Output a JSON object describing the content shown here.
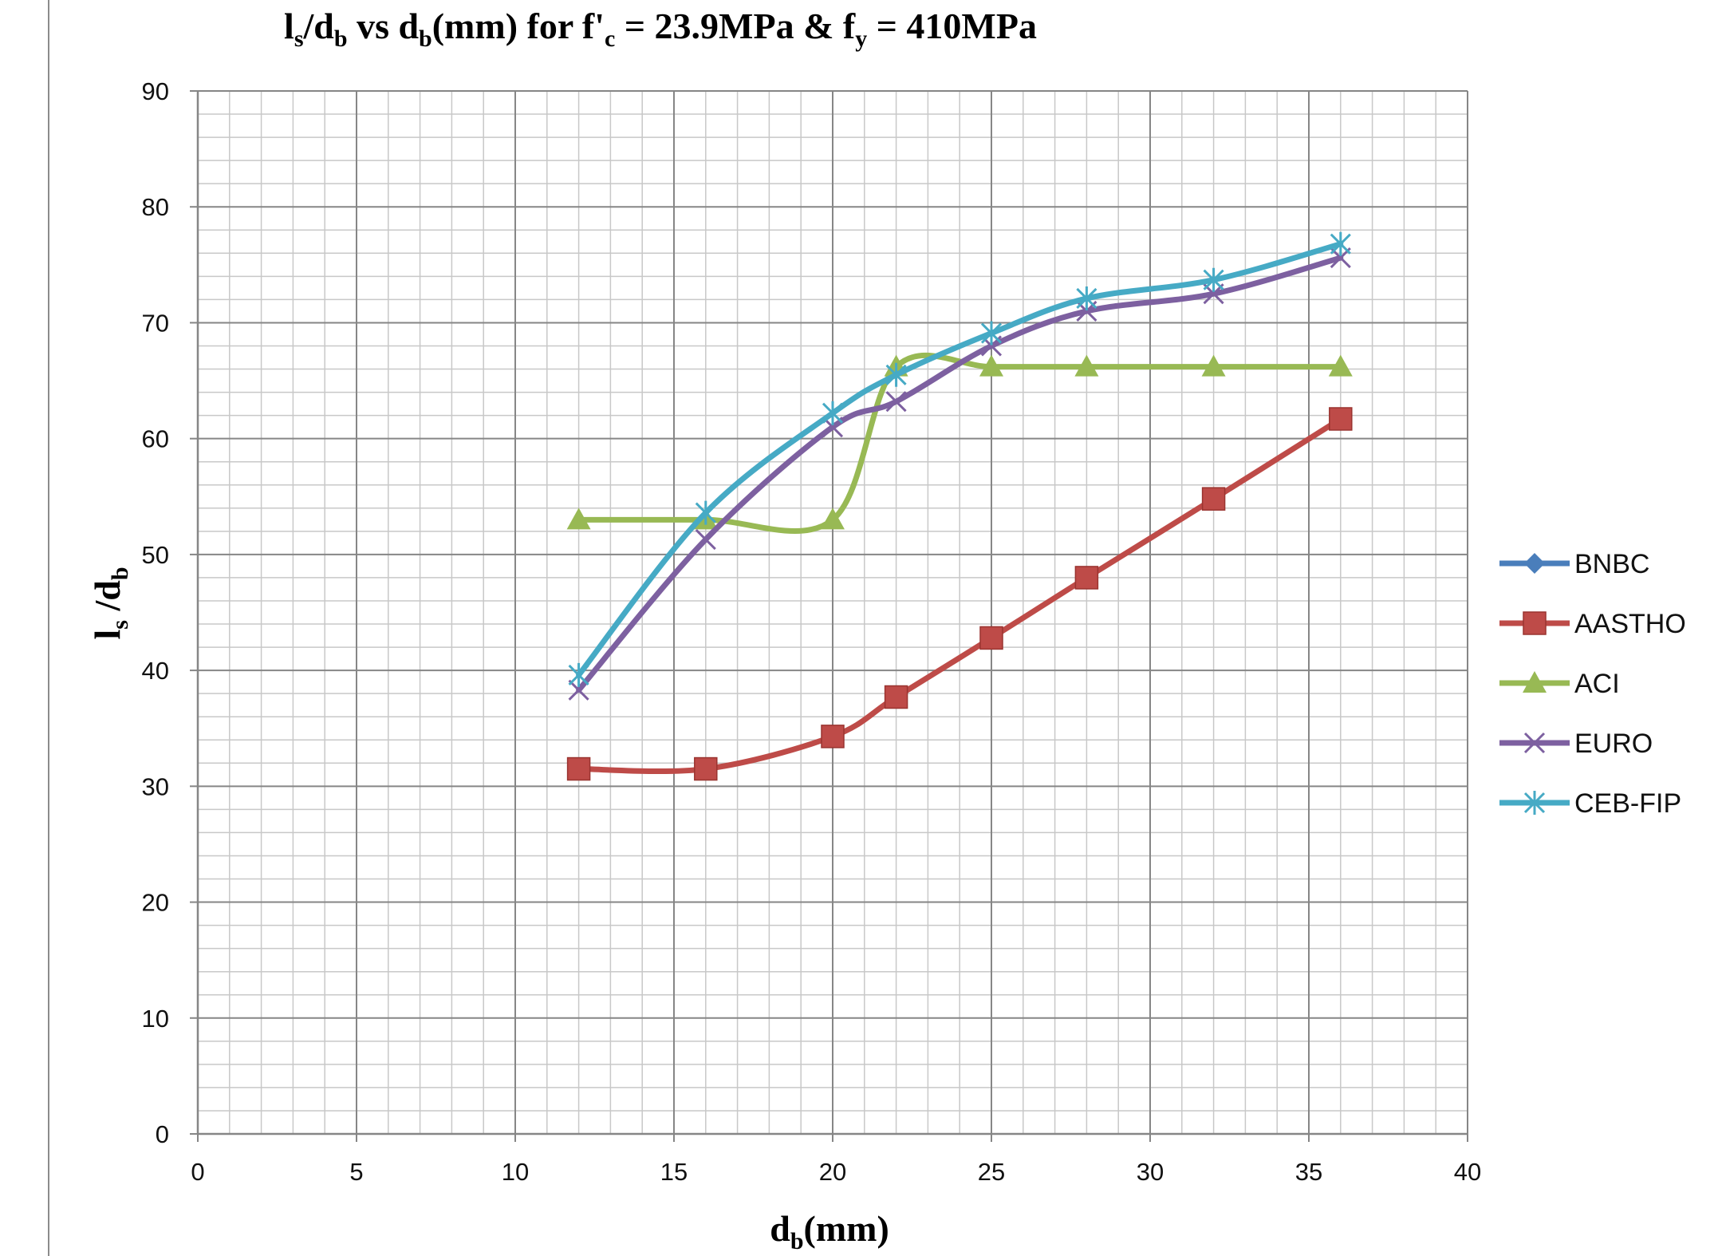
{
  "chart_data": {
    "type": "line",
    "title": {
      "l": "l",
      "s": "s",
      "over_d": "/d",
      "b1": "b",
      "vs_d": " vs d",
      "b2": "b",
      "mm_for": "(mm) for f'",
      "c": "c",
      "eq": " = 23.9MPa &  f",
      "y": "y",
      "fy": " = 410MPa"
    },
    "xlabel": {
      "main": "d",
      "sub": "b",
      "unit": "(mm)"
    },
    "ylabel": {
      "l": "l",
      "s": "s",
      "over_d": " /d",
      "b": "b"
    },
    "xlim": [
      0,
      40
    ],
    "ylim": [
      0,
      90
    ],
    "x_ticks": [
      "0",
      "5",
      "10",
      "15",
      "20",
      "25",
      "30",
      "35",
      "40"
    ],
    "y_ticks": [
      "0",
      "10",
      "20",
      "30",
      "40",
      "50",
      "60",
      "70",
      "80",
      "90"
    ],
    "grid": true,
    "legend_position": "right",
    "x": [
      12,
      16,
      20,
      22,
      25,
      28,
      32,
      36
    ],
    "series": [
      {
        "name": "BNBC",
        "color": "#4a7ebb",
        "marker": "diamond",
        "values": [
          null,
          null,
          null,
          null,
          null,
          null,
          null,
          null
        ]
      },
      {
        "name": "AASTHO",
        "color": "#be4b48",
        "marker": "square",
        "values": [
          31.5,
          31.5,
          34.3,
          37.7,
          42.8,
          48.0,
          54.8,
          61.7
        ]
      },
      {
        "name": "ACI",
        "color": "#98b954",
        "marker": "triangle",
        "values": [
          53.0,
          53.0,
          53.0,
          66.2,
          66.2,
          66.2,
          66.2,
          66.2
        ]
      },
      {
        "name": "EURO",
        "color": "#7d60a0",
        "marker": "x",
        "values": [
          38.3,
          51.3,
          61.0,
          63.2,
          68.0,
          71.0,
          72.5,
          75.6
        ]
      },
      {
        "name": "CEB-FIP",
        "color": "#46aac5",
        "marker": "star",
        "values": [
          39.6,
          53.6,
          62.2,
          65.5,
          69.1,
          72.1,
          73.7,
          76.8
        ]
      }
    ]
  }
}
